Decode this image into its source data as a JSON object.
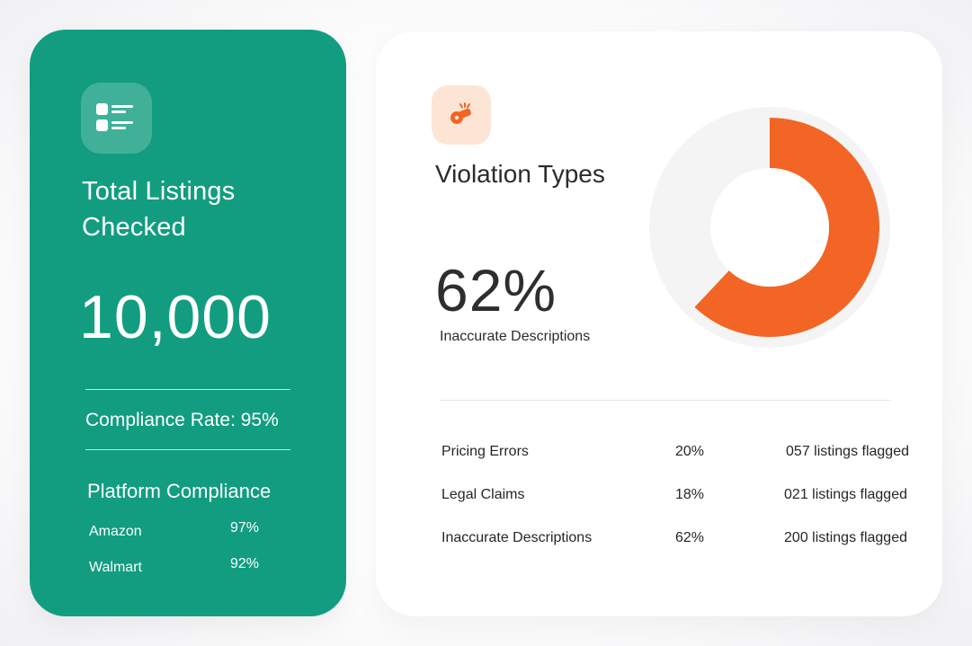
{
  "left_card": {
    "icon": "list-icon",
    "title": "Total Listings Checked",
    "total": "10,000",
    "compliance_rate": "Compliance Rate: 95%",
    "platform_title": "Platform Compliance",
    "platforms": [
      {
        "name": "Amazon",
        "percent": "97%"
      },
      {
        "name": "Walmart",
        "percent": "92%"
      }
    ]
  },
  "right_card": {
    "icon": "whistle-icon",
    "title": "Violation Types",
    "highlight_percent": "62%",
    "highlight_label": "Inaccurate Descriptions",
    "donut": {
      "value": 62,
      "color": "#f26524",
      "track": "#f3f3f3"
    },
    "violations": [
      {
        "type": "Pricing Errors",
        "percent": "20%",
        "flagged": "057 listings flagged"
      },
      {
        "type": "Legal Claims",
        "percent": "18%",
        "flagged": "021 listings flagged"
      },
      {
        "type": "Inaccurate Descriptions",
        "percent": "62%",
        "flagged": "200 listings flagged"
      }
    ]
  },
  "colors": {
    "green": "#129d80",
    "orange": "#f26524",
    "orange_tint": "#fde5d6"
  }
}
